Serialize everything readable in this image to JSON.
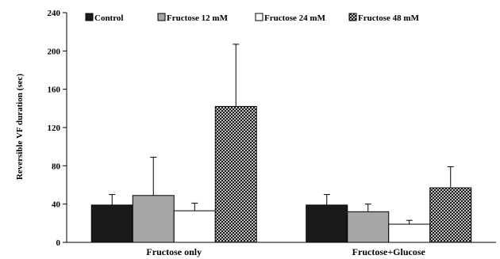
{
  "chart_data": {
    "type": "bar",
    "title": "",
    "xlabel": "",
    "ylabel": "Reversible VF duration (sec)",
    "ylim": [
      0,
      240
    ],
    "yticks": [
      0,
      40,
      80,
      120,
      160,
      200,
      240
    ],
    "grid": false,
    "legend_position": "top",
    "categories": [
      "Fructose only",
      "Fructose+Glucose"
    ],
    "series": [
      {
        "name": "Control",
        "fill": "#1a1a1a",
        "pattern": "solid",
        "values": [
          39,
          39
        ],
        "errors": [
          11,
          11
        ]
      },
      {
        "name": "Fructose 12 mM",
        "fill": "#a6a6a6",
        "pattern": "solid",
        "values": [
          49,
          32
        ],
        "errors": [
          40,
          8
        ]
      },
      {
        "name": "Fructose 24 mM",
        "fill": "#ffffff",
        "pattern": "solid",
        "values": [
          33,
          19
        ],
        "errors": [
          8,
          4
        ]
      },
      {
        "name": "Fructose 48 mM",
        "fill": "#ffffff",
        "pattern": "crosshatch",
        "values": [
          142,
          57
        ],
        "errors": [
          65,
          22
        ]
      }
    ]
  }
}
